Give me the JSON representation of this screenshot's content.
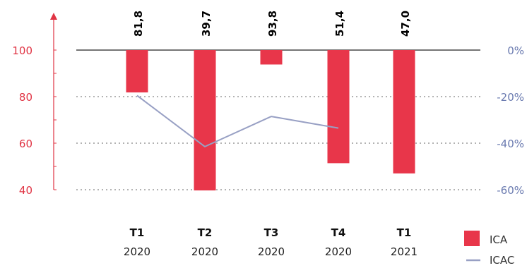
{
  "chart_data": {
    "type": "bar",
    "categories": [
      {
        "quarter": "T1",
        "year": "2020"
      },
      {
        "quarter": "T2",
        "year": "2020"
      },
      {
        "quarter": "T3",
        "year": "2020"
      },
      {
        "quarter": "T4",
        "year": "2020"
      },
      {
        "quarter": "T1",
        "year": "2021"
      }
    ],
    "series": [
      {
        "name": "ICA",
        "axis": "left",
        "type": "bar",
        "color": "#e8364a",
        "values": [
          81.8,
          39.7,
          93.8,
          51.4,
          47.0
        ],
        "labels": [
          "81,8",
          "39,7",
          "93,8",
          "51,4",
          "47,0"
        ]
      },
      {
        "name": "ICAC",
        "axis": "right",
        "type": "line",
        "color": "#98a0c4",
        "values": [
          -19.5,
          -41.5,
          -28.5,
          -33.5,
          null
        ]
      }
    ],
    "left_axis": {
      "min": 40,
      "max": 100,
      "ticks": [
        "100",
        "80",
        "60",
        "40"
      ],
      "color": "#e03444"
    },
    "right_axis": {
      "min": -60,
      "max": 0,
      "ticks": [
        "0%",
        "-20%",
        "-40%",
        "-60%"
      ],
      "color": "#6b7bb0"
    },
    "grid": "dotted",
    "legend": {
      "position": "bottom-right",
      "items": [
        "ICA",
        "ICAC"
      ]
    }
  }
}
